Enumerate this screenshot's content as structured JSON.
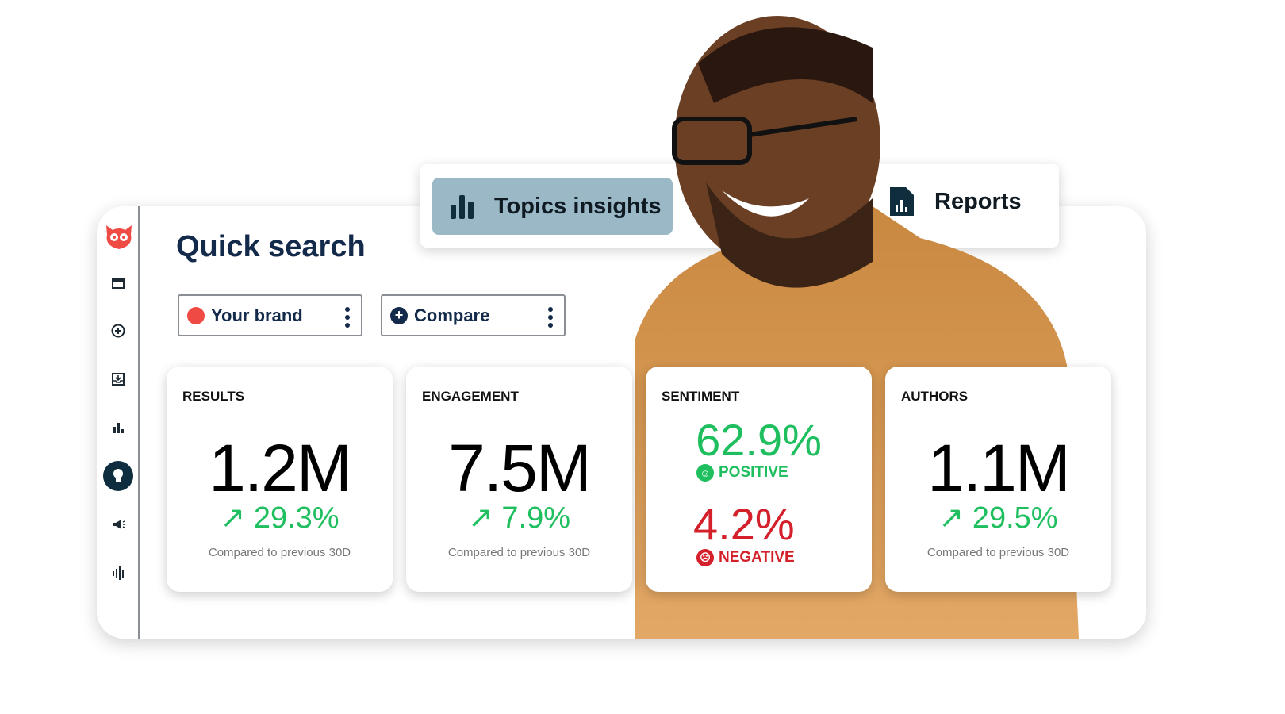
{
  "colors": {
    "brand_title": "#132a4a",
    "positive": "#1fbf60",
    "negative": "#d3202a",
    "tab_active": "#9ab8c6",
    "brand_dot": "#f04a45",
    "logo": "#f04a45"
  },
  "sidebar": {
    "items": [
      {
        "icon": "owl-logo-icon"
      },
      {
        "icon": "calendar-icon"
      },
      {
        "icon": "plus-circle-icon"
      },
      {
        "icon": "inbox-icon"
      },
      {
        "icon": "bar-chart-icon"
      },
      {
        "icon": "lightbulb-icon",
        "active": true
      },
      {
        "icon": "megaphone-icon"
      },
      {
        "icon": "audio-bars-icon"
      }
    ]
  },
  "header": {
    "title": "Quick search"
  },
  "filters": {
    "brand": "Your brand",
    "compare": "Compare"
  },
  "tabs": [
    {
      "label": "Topics insights",
      "icon": "bar-chart-icon",
      "active": true
    },
    {
      "label": "Reports",
      "icon": "report-document-icon"
    }
  ],
  "cards": {
    "results": {
      "label": "RESULTS",
      "value": "1.2M",
      "change": "29.3%",
      "compare": "Compared to previous 30D"
    },
    "engagement": {
      "label": "ENGAGEMENT",
      "value": "7.5M",
      "change": "7.9%",
      "compare": "Compared to previous 30D"
    },
    "sentiment": {
      "label": "SENTIMENT",
      "positive_value": "62.9%",
      "positive_label": "POSITIVE",
      "negative_value": "4.2%",
      "negative_label": "NEGATIVE"
    },
    "authors": {
      "label": "AUTHORS",
      "value": "1.1M",
      "change": "29.5%",
      "compare": "Compared to previous 30D"
    }
  }
}
